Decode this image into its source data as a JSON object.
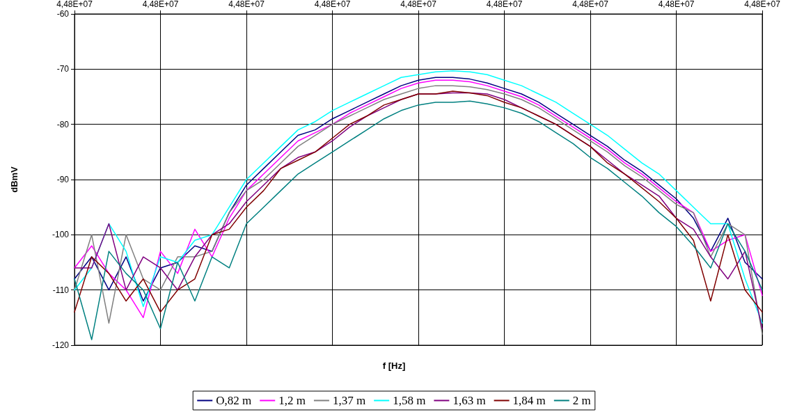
{
  "chart_data": {
    "type": "line",
    "xlabel": "f [Hz]",
    "ylabel": "dBmV",
    "categories": [
      "4,48E+07",
      null,
      null,
      null,
      null,
      "4,48E+07",
      null,
      null,
      null,
      null,
      "4,48E+07",
      null,
      null,
      null,
      null,
      "4,48E+07",
      null,
      null,
      null,
      null,
      "4,48E+07",
      null,
      null,
      null,
      null,
      "4,48E+07",
      null,
      null,
      null,
      null,
      "4,48E+07",
      null,
      null,
      null,
      null,
      "4,48E+07",
      null,
      null,
      null,
      null,
      "4,48E+07"
    ],
    "series": [
      {
        "name": "O,82 m",
        "color": "#000080",
        "values": [
          -108,
          -104,
          -110,
          -104,
          -112,
          -106,
          -105,
          -102,
          -103,
          -96,
          -91,
          -88,
          -85,
          -82,
          -81,
          -79,
          -77.5,
          -76,
          -74.5,
          -73,
          -72,
          -71.5,
          -71.5,
          -71.8,
          -72.5,
          -73.5,
          -74.5,
          -76,
          -78,
          -80,
          -82,
          -84,
          -86.5,
          -88.5,
          -91,
          -93.5,
          -97,
          -103,
          -97,
          -105,
          -108
        ]
      },
      {
        "name": "1,2 m",
        "color": "#ff00ff",
        "values": [
          -106,
          -102,
          -107,
          -110,
          -115,
          -103,
          -107,
          -99,
          -104,
          -97,
          -92,
          -89,
          -86,
          -83,
          -81.5,
          -80,
          -78,
          -76.5,
          -75,
          -73.5,
          -72.5,
          -72,
          -72,
          -72.3,
          -73,
          -74,
          -75,
          -76.5,
          -78.5,
          -80.5,
          -82.5,
          -84.5,
          -87,
          -89,
          -91.5,
          -94,
          -96,
          -103,
          -101,
          -100,
          -111
        ]
      },
      {
        "name": "1,37 m",
        "color": "#808080",
        "values": [
          -110,
          -100,
          -116,
          -100,
          -108,
          -110,
          -104,
          -104,
          -103,
          -96,
          -92,
          -90,
          -87,
          -84,
          -82,
          -80,
          -78.5,
          -77,
          -75.5,
          -74.5,
          -73.5,
          -73,
          -73,
          -73.2,
          -73.7,
          -74.5,
          -75.5,
          -77,
          -79,
          -81,
          -83,
          -85,
          -87.5,
          -89.5,
          -92,
          -94.5,
          -96,
          -104,
          -98,
          -100,
          -118
        ]
      },
      {
        "name": "1,58 m",
        "color": "#00ffff",
        "values": [
          -110,
          -106,
          -98,
          -103,
          -113,
          -104,
          -105,
          -101,
          -100,
          -95,
          -90,
          -87,
          -84,
          -81,
          -79.5,
          -77.5,
          -76,
          -74.5,
          -73,
          -71.5,
          -71,
          -70.5,
          -70.3,
          -70.5,
          -71,
          -72,
          -73,
          -74.5,
          -76,
          -78,
          -80,
          -82,
          -84.5,
          -87,
          -89,
          -92,
          -95,
          -98,
          -98,
          -108,
          -116
        ]
      },
      {
        "name": "1,63 m",
        "color": "#800080",
        "values": [
          -106,
          -106,
          -98,
          -110,
          -104,
          -106,
          -110,
          -104,
          -100,
          -98,
          -94,
          -91,
          -88,
          -86,
          -85,
          -83,
          -80.5,
          -78.5,
          -77,
          -75.5,
          -74.5,
          -74.5,
          -74.3,
          -74.3,
          -74.5,
          -75.5,
          -77,
          -78.5,
          -80,
          -82,
          -84,
          -86.5,
          -89,
          -91,
          -93,
          -97,
          -99,
          -104,
          -108,
          -103,
          -117
        ]
      },
      {
        "name": "1,84 m",
        "color": "#800000",
        "values": [
          -114,
          -104,
          -107,
          -112,
          -108,
          -114,
          -110,
          -108,
          -100,
          -99,
          -95,
          -92,
          -88,
          -86.5,
          -85,
          -82.5,
          -80,
          -78.5,
          -76.5,
          -75.5,
          -74.5,
          -74.5,
          -74,
          -74.3,
          -74.8,
          -76,
          -77,
          -78.5,
          -80,
          -82,
          -84,
          -87,
          -89,
          -91.5,
          -94,
          -97,
          -101,
          -112,
          -100,
          -110,
          -114
        ]
      },
      {
        "name": "2 m",
        "color": "#008080",
        "values": [
          -108,
          -119,
          -103,
          -107,
          -110,
          -117,
          -105,
          -112,
          -104,
          -106,
          -98,
          -95,
          -92,
          -89,
          -87,
          -85,
          -83,
          -81,
          -79,
          -77.5,
          -76.5,
          -76,
          -76,
          -75.8,
          -76.3,
          -77,
          -78,
          -79.5,
          -81.5,
          -83.5,
          -86,
          -88,
          -90.5,
          -93,
          -96,
          -98.5,
          -102,
          -106,
          -98,
          -103,
          -110
        ]
      }
    ],
    "ylim": [
      -120,
      -60
    ],
    "yticks": [
      -120,
      -110,
      -100,
      -90,
      -80,
      -70,
      -60
    ],
    "grid": true,
    "legend": "bottom",
    "marker": "none",
    "line_style": "solid"
  }
}
